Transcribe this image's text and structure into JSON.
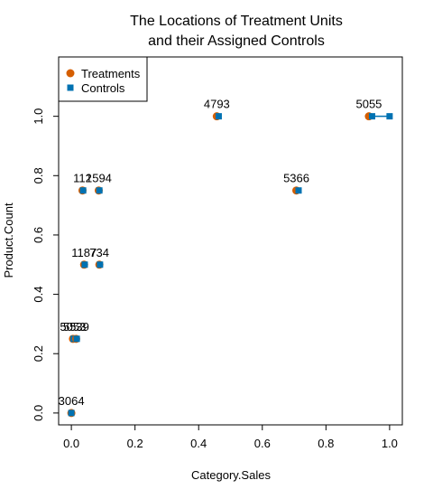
{
  "chart_data": {
    "type": "scatter",
    "title": [
      "The Locations of Treatment Units",
      "and their Assigned Controls"
    ],
    "xlabel": "Category.Sales",
    "ylabel": "Product.Count",
    "xlim": [
      -0.04,
      1.04
    ],
    "ylim": [
      -0.04,
      1.2
    ],
    "x_ticks": [
      "0.0",
      "0.2",
      "0.4",
      "0.6",
      "0.8",
      "1.0"
    ],
    "x_tick_values": [
      0,
      0.2,
      0.4,
      0.6,
      0.8,
      1.0
    ],
    "y_ticks": [
      "0.0",
      "0.2",
      "0.4",
      "0.6",
      "0.8",
      "1.0"
    ],
    "y_tick_values": [
      0,
      0.2,
      0.4,
      0.6,
      0.8,
      1.0
    ],
    "grid": false,
    "legend_position": "top-left",
    "legend": [
      {
        "name": "Treatments",
        "marker": "circle",
        "color": "#D55E00"
      },
      {
        "name": "Controls",
        "marker": "square",
        "color": "#0072B2"
      }
    ],
    "pairs": [
      {
        "label": "3064",
        "treatment": [
          0.0,
          0.0
        ],
        "control": [
          0.0,
          0.0
        ]
      },
      {
        "label": "5053",
        "treatment": [
          0.005,
          0.25
        ],
        "control": [
          0.007,
          0.25
        ]
      },
      {
        "label": "5539",
        "treatment": [
          0.015,
          0.25
        ],
        "control": [
          0.017,
          0.25
        ]
      },
      {
        "label": "1187",
        "treatment": [
          0.04,
          0.5
        ],
        "control": [
          0.042,
          0.5
        ]
      },
      {
        "label": "734",
        "treatment": [
          0.088,
          0.5
        ],
        "control": [
          0.09,
          0.5
        ]
      },
      {
        "label": "112",
        "treatment": [
          0.035,
          0.75
        ],
        "control": [
          0.037,
          0.75
        ]
      },
      {
        "label": "1594",
        "treatment": [
          0.086,
          0.75
        ],
        "control": [
          0.088,
          0.75
        ]
      },
      {
        "label": "4793",
        "treatment": [
          0.457,
          1.0
        ],
        "control": [
          0.463,
          1.0
        ]
      },
      {
        "label": "5366",
        "treatment": [
          0.707,
          0.75
        ],
        "control": [
          0.714,
          0.75
        ]
      },
      {
        "label": "5055",
        "treatment": [
          0.935,
          1.0
        ],
        "control": [
          0.945,
          1.0
        ],
        "extra_controls": [
          [
            1.0,
            1.0
          ]
        ]
      }
    ]
  },
  "colors": {
    "treatment": "#D55E00",
    "control": "#0072B2"
  }
}
